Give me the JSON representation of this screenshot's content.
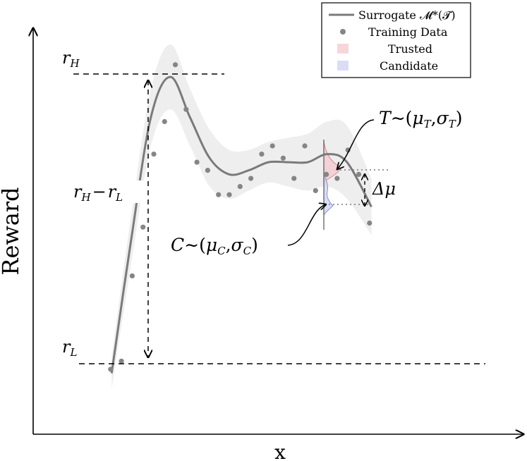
{
  "chart_data": {
    "type": "line",
    "xlabel": "x",
    "ylabel": "Reward",
    "legend_placement": "top-right",
    "grid": false,
    "xlim": [
      0,
      1
    ],
    "ylim": [
      0,
      1
    ],
    "legend": {
      "surrogate": "Surrogate 𝓜*(𝓣)",
      "training": "Training Data",
      "trusted": "Trusted",
      "candidate": "Candidate"
    },
    "series": [
      {
        "name": "Surrogate 𝓜*(𝓣)",
        "x": [
          0.16,
          0.2,
          0.24,
          0.28,
          0.32,
          0.36,
          0.4,
          0.44,
          0.48,
          0.52,
          0.56,
          0.6,
          0.64,
          0.69
        ],
        "y": [
          0.15,
          0.48,
          0.78,
          0.88,
          0.78,
          0.68,
          0.64,
          0.65,
          0.67,
          0.67,
          0.67,
          0.69,
          0.67,
          0.56
        ],
        "band_halfwidth": [
          0.04,
          0.06,
          0.07,
          0.08,
          0.07,
          0.07,
          0.06,
          0.05,
          0.05,
          0.06,
          0.07,
          0.08,
          0.09,
          0.07
        ]
      }
    ],
    "training_points": {
      "x": [
        0.158,
        0.18,
        0.202,
        0.224,
        0.246,
        0.268,
        0.29,
        0.312,
        0.334,
        0.356,
        0.378,
        0.4,
        0.422,
        0.444,
        0.466,
        0.488,
        0.51,
        0.532,
        0.554,
        0.576,
        0.598,
        0.62,
        0.642,
        0.664,
        0.686
      ],
      "y": [
        0.16,
        0.18,
        0.39,
        0.51,
        0.69,
        0.77,
        0.91,
        0.8,
        0.67,
        0.65,
        0.59,
        0.59,
        0.61,
        0.63,
        0.69,
        0.71,
        0.68,
        0.63,
        0.71,
        0.6,
        0.64,
        0.63,
        0.7,
        0.64,
        0.52
      ]
    },
    "annotations": {
      "r_high": "r",
      "r_high_sub": "H",
      "r_low": "r",
      "r_low_sub": "L",
      "range_r": "r",
      "range_h": "H",
      "range_minus": "−",
      "range_l": "L",
      "trusted_T": "T",
      "trusted_mu": "μ",
      "trusted_sigma": "σ",
      "trusted_sub": "T",
      "candidate_C": "C",
      "candidate_mu": "μ",
      "candidate_sigma": "σ",
      "candidate_sub": "C",
      "delta_mu": "Δμ",
      "tilde": "∼",
      "open_paren": "(",
      "comma": ",",
      "close_paren": ")"
    },
    "colors": {
      "curve": "#7a7a7a",
      "band": "#eeeeee",
      "points": "#858585",
      "trusted": "#f3c8cf",
      "candidate": "#cfd2f3",
      "trusted_edge": "#d88a96",
      "candidate_edge": "#8a8ed8"
    }
  }
}
